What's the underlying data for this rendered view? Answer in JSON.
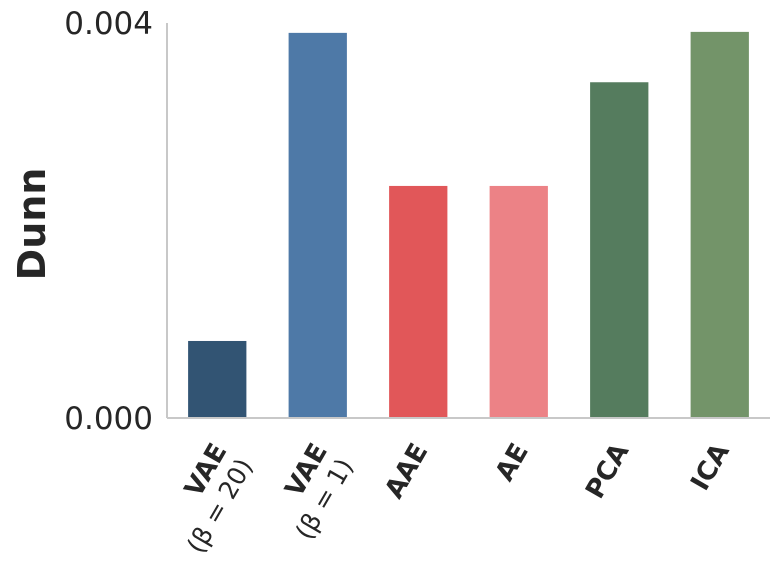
{
  "chart_data": {
    "type": "bar",
    "ylabel": "Dunn",
    "xlabel": "",
    "ylim": [
      0,
      0.004
    ],
    "yticks": [
      {
        "value": 0,
        "label": "0.000"
      },
      {
        "value": 0.004,
        "label": "0.004"
      }
    ],
    "grid": false,
    "categories": [
      {
        "label": "VAE",
        "sublabel": "(β = 20)",
        "value": 0.00078,
        "color": "#325473"
      },
      {
        "label": "VAE",
        "sublabel": "(β = 1)",
        "value": 0.0039,
        "color": "#4e79a7"
      },
      {
        "label": "AAE",
        "sublabel": "",
        "value": 0.00235,
        "color": "#e15759"
      },
      {
        "label": "AE",
        "sublabel": "",
        "value": 0.00235,
        "color": "#ec8286"
      },
      {
        "label": "PCA",
        "sublabel": "",
        "value": 0.0034,
        "color": "#557c5e"
      },
      {
        "label": "ICA",
        "sublabel": "",
        "value": 0.00391,
        "color": "#739469"
      }
    ]
  }
}
